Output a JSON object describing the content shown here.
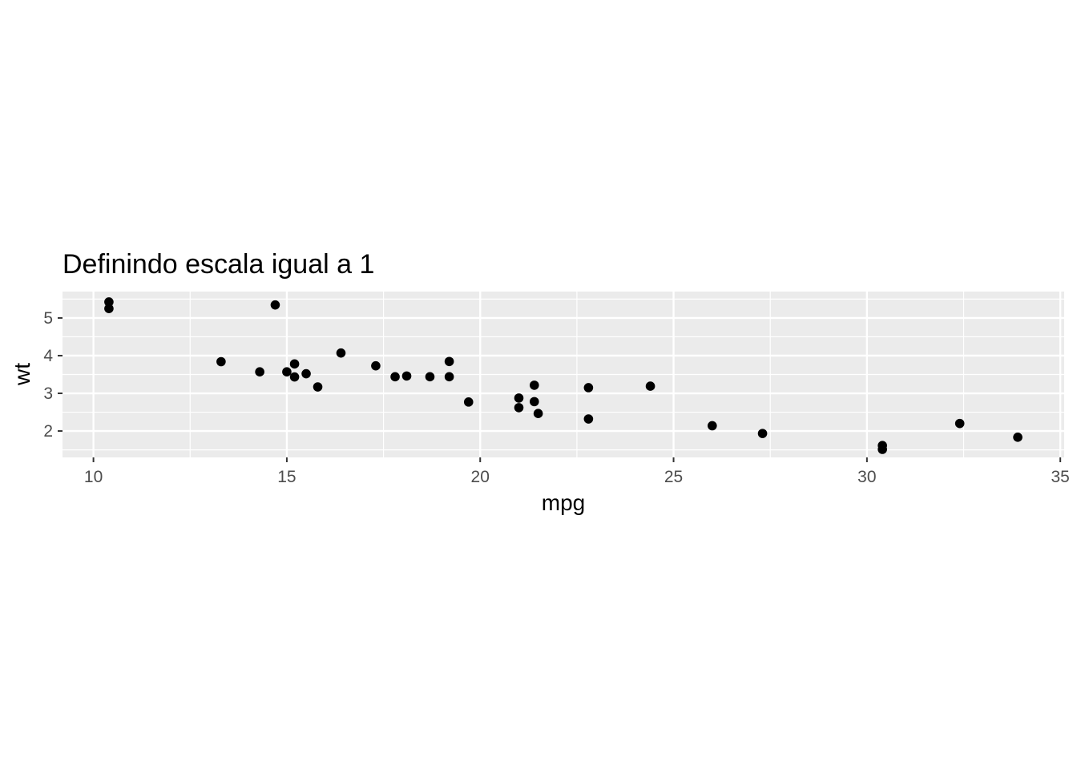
{
  "chart_data": {
    "type": "scatter",
    "title": "Definindo escala igual a 1",
    "xlabel": "mpg",
    "ylabel": "wt",
    "xlim": [
      9.2,
      35.1
    ],
    "ylim": [
      1.3,
      5.7
    ],
    "x_ticks": [
      10,
      15,
      20,
      25,
      30,
      35
    ],
    "y_ticks": [
      2,
      3,
      4,
      5
    ],
    "grid": true,
    "legend": "none",
    "colors": {
      "panel": "#ebebeb",
      "grid": "#ffffff",
      "point": "#000000",
      "tick_text": "#4d4d4d"
    },
    "series": [
      {
        "x": [
          21.0,
          21.0,
          22.8,
          21.4,
          18.7,
          18.1,
          14.3,
          24.4,
          22.8,
          19.2,
          17.8,
          16.4,
          17.3,
          15.2,
          10.4,
          10.4,
          14.7,
          32.4,
          30.4,
          33.9,
          21.5,
          15.5,
          15.2,
          13.3,
          19.2,
          27.3,
          26.0,
          30.4,
          15.8,
          19.7,
          15.0,
          21.4
        ],
        "y": [
          2.62,
          2.875,
          2.32,
          3.215,
          3.44,
          3.46,
          3.57,
          3.19,
          3.15,
          3.44,
          3.44,
          4.07,
          3.73,
          3.78,
          5.25,
          5.424,
          5.345,
          2.2,
          1.615,
          1.835,
          2.465,
          3.52,
          3.435,
          3.84,
          3.845,
          1.935,
          2.14,
          1.513,
          3.17,
          2.77,
          3.57,
          2.78
        ]
      }
    ]
  }
}
